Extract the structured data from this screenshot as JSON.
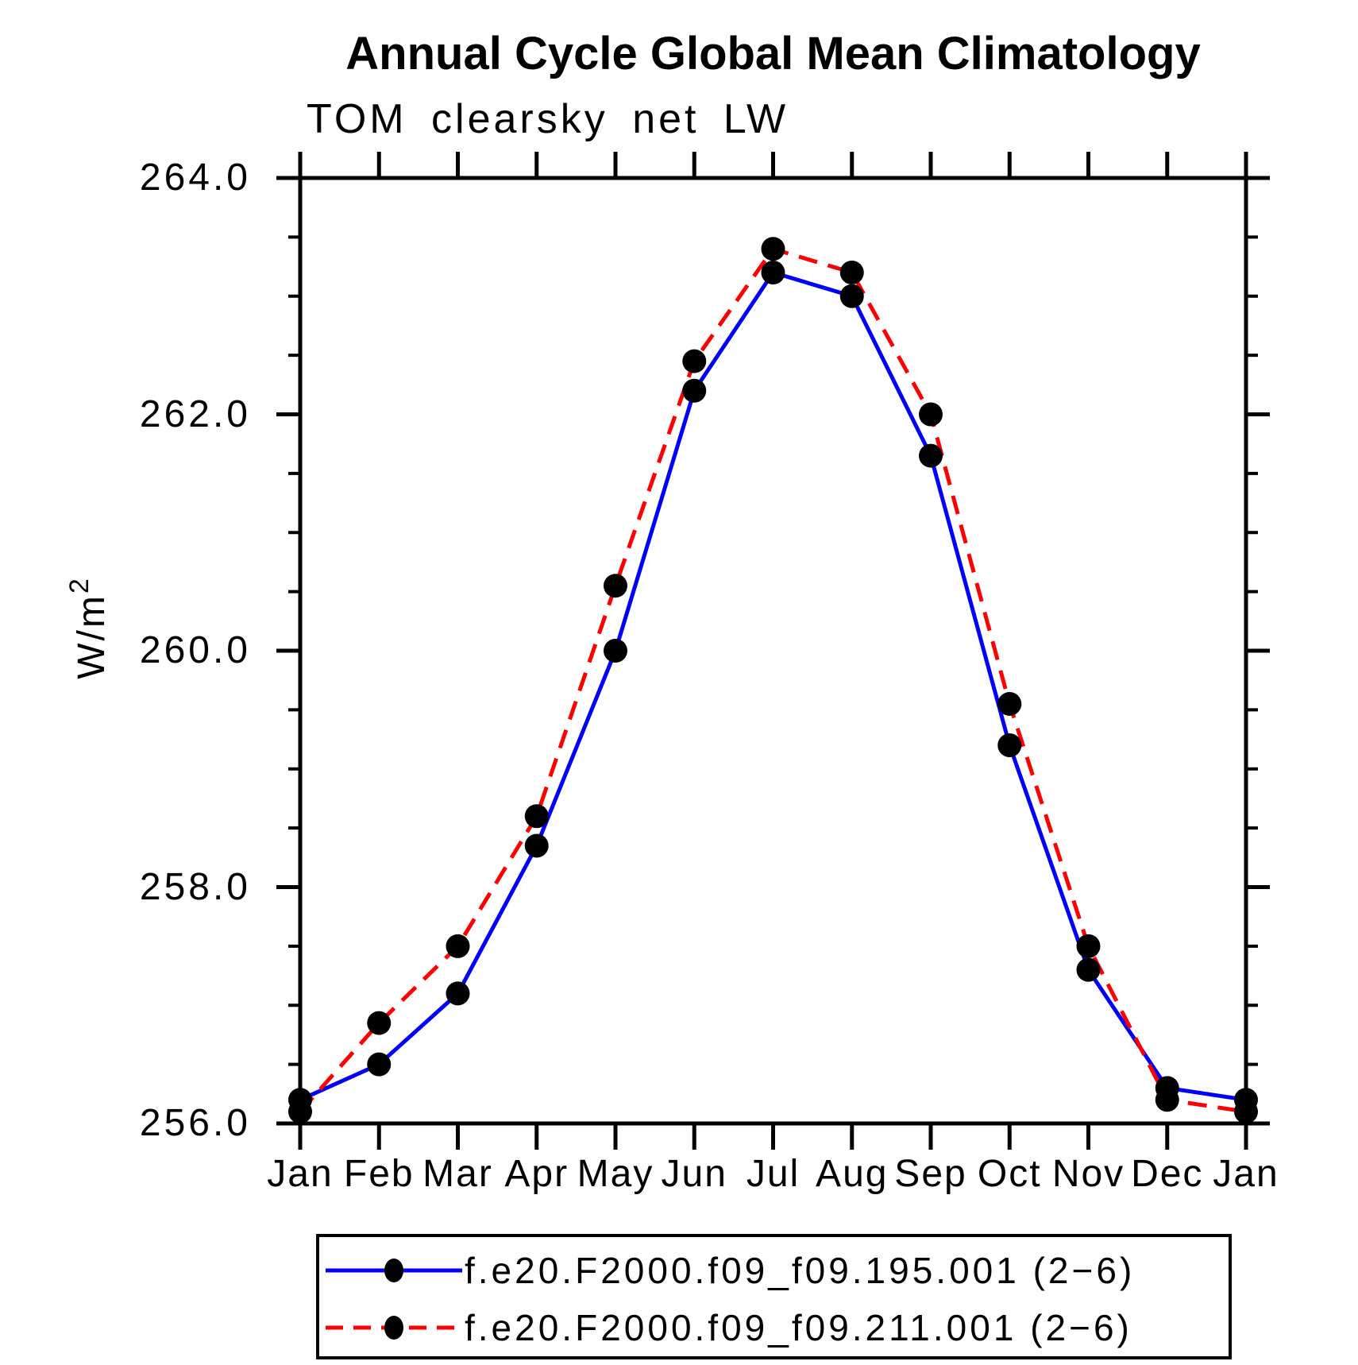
{
  "chart_data": {
    "type": "line",
    "title": "Annual Cycle Global Mean Climatology",
    "subtitle": "TOM clearsky net LW",
    "ylabel_base": "W/m",
    "ylabel_exp": "2",
    "categories": [
      "Jan",
      "Feb",
      "Mar",
      "Apr",
      "May",
      "Jun",
      "Jul",
      "Aug",
      "Sep",
      "Oct",
      "Nov",
      "Dec",
      "Jan"
    ],
    "series": [
      {
        "name": "f.e20.F2000.f09_f09.195.001 (2−6)",
        "color": "#0000ff",
        "line_style": "solid",
        "marker": "filled-black-circle",
        "values": [
          256.2,
          256.5,
          257.1,
          258.35,
          260.0,
          262.2,
          263.2,
          263.0,
          261.65,
          259.2,
          257.3,
          256.3,
          256.2
        ]
      },
      {
        "name": "f.e20.F2000.f09_f09.211.001 (2−6)",
        "color": "#ff0000",
        "line_style": "dashed",
        "marker": "filled-black-circle",
        "values": [
          256.1,
          256.85,
          257.5,
          258.6,
          260.55,
          262.45,
          263.4,
          263.2,
          262.0,
          259.55,
          257.5,
          256.2,
          256.1
        ]
      }
    ],
    "ylim": [
      256.0,
      264.0
    ],
    "ytick_major_labels": [
      "256.0",
      "258.0",
      "260.0",
      "262.0",
      "264.0"
    ],
    "ytick_minor_step": 0.5,
    "grid": false,
    "legend_position": "bottom"
  },
  "colors": {
    "series_blue": "#0000ff",
    "series_red": "#ff0000",
    "marker": "#000000",
    "axis": "#000000",
    "background": "#ffffff"
  }
}
